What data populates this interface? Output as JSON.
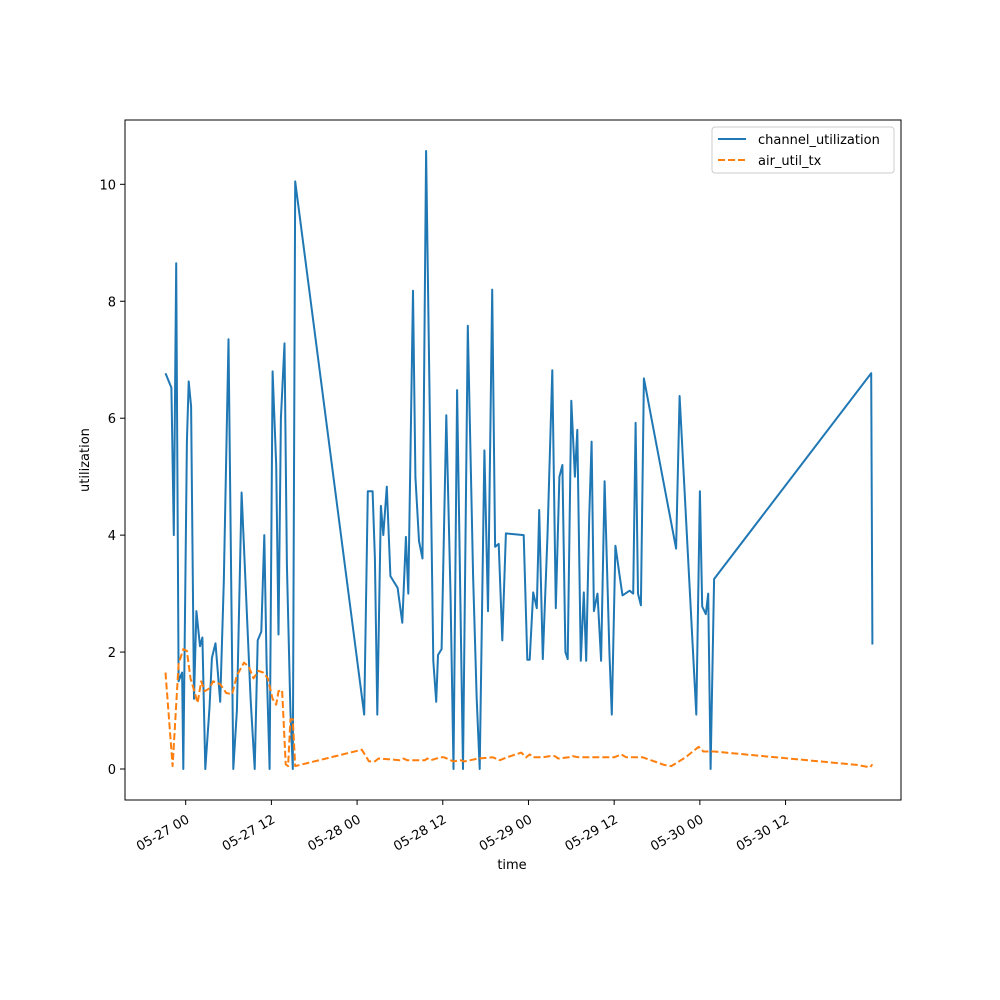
{
  "chart_data": {
    "type": "line",
    "title": "",
    "xlabel": "time",
    "ylabel": "utilization",
    "grid": false,
    "legend_position": "top-right",
    "xlim": [
      "2023-05-26 15:30",
      "2023-05-31 04:10"
    ],
    "ylim": [
      -0.53,
      11.1
    ],
    "x_tick_labels": [
      "05-27 00",
      "05-27 12",
      "05-28 00",
      "05-28 12",
      "05-29 00",
      "05-29 12",
      "05-30 00",
      "05-30 12"
    ],
    "x_ticks": [
      "2023-05-27 00:00",
      "2023-05-27 12:00",
      "2023-05-28 00:00",
      "2023-05-28 12:00",
      "2023-05-29 00:00",
      "2023-05-29 12:00",
      "2023-05-30 00:00",
      "2023-05-30 12:00"
    ],
    "y_ticks": [
      0,
      2,
      4,
      6,
      8,
      10
    ],
    "y_tick_labels": [
      "0",
      "2",
      "4",
      "6",
      "8",
      "10"
    ],
    "series": [
      {
        "name": "channel_utilization",
        "color": "#1f77b4",
        "style": "solid",
        "points": [
          [
            "2023-05-26 21:10",
            6.77
          ],
          [
            "2023-05-26 22:00",
            6.52
          ],
          [
            "2023-05-26 22:05",
            5.9
          ],
          [
            "2023-05-26 22:20",
            4.0
          ],
          [
            "2023-05-26 22:40",
            8.65
          ],
          [
            "2023-05-26 23:00",
            1.5
          ],
          [
            "2023-05-26 23:30",
            1.65
          ],
          [
            "2023-05-26 23:40",
            0.0
          ],
          [
            "2023-05-27 00:10",
            5.6
          ],
          [
            "2023-05-27 00:25",
            6.63
          ],
          [
            "2023-05-27 00:45",
            6.2
          ],
          [
            "2023-05-27 01:10",
            1.2
          ],
          [
            "2023-05-27 01:30",
            2.7
          ],
          [
            "2023-05-27 02:00",
            2.1
          ],
          [
            "2023-05-27 02:20",
            2.25
          ],
          [
            "2023-05-27 02:45",
            0.0
          ],
          [
            "2023-05-27 03:20",
            1.05
          ],
          [
            "2023-05-27 03:40",
            1.9
          ],
          [
            "2023-05-27 04:10",
            2.15
          ],
          [
            "2023-05-27 04:50",
            1.15
          ],
          [
            "2023-05-27 05:20",
            3.2
          ],
          [
            "2023-05-27 06:00",
            7.35
          ],
          [
            "2023-05-27 06:40",
            0.0
          ],
          [
            "2023-05-27 07:10",
            1.0
          ],
          [
            "2023-05-27 07:50",
            4.73
          ],
          [
            "2023-05-27 09:05",
            1.2
          ],
          [
            "2023-05-27 09:40",
            0.0
          ],
          [
            "2023-05-27 10:05",
            2.2
          ],
          [
            "2023-05-27 10:35",
            2.35
          ],
          [
            "2023-05-27 11:00",
            4.0
          ],
          [
            "2023-05-27 11:20",
            1.8
          ],
          [
            "2023-05-27 11:45",
            0.0
          ],
          [
            "2023-05-27 12:10",
            6.8
          ],
          [
            "2023-05-27 12:40",
            5.2
          ],
          [
            "2023-05-27 13:00",
            2.3
          ],
          [
            "2023-05-27 13:20",
            6.0
          ],
          [
            "2023-05-27 13:50",
            7.28
          ],
          [
            "2023-05-27 14:10",
            3.5
          ],
          [
            "2023-05-27 14:40",
            1.0
          ],
          [
            "2023-05-27 15:00",
            0.0
          ],
          [
            "2023-05-27 15:20",
            10.05
          ],
          [
            "2023-05-28 01:00",
            0.93
          ],
          [
            "2023-05-28 01:30",
            4.75
          ],
          [
            "2023-05-28 02:10",
            4.75
          ],
          [
            "2023-05-28 02:30",
            3.6
          ],
          [
            "2023-05-28 02:50",
            0.93
          ],
          [
            "2023-05-28 03:20",
            4.5
          ],
          [
            "2023-05-28 03:40",
            4.0
          ],
          [
            "2023-05-28 04:10",
            4.83
          ],
          [
            "2023-05-28 04:40",
            3.3
          ],
          [
            "2023-05-28 05:40",
            3.1
          ],
          [
            "2023-05-28 06:20",
            2.5
          ],
          [
            "2023-05-28 06:50",
            3.97
          ],
          [
            "2023-05-28 07:10",
            3.0
          ],
          [
            "2023-05-28 07:50",
            8.18
          ],
          [
            "2023-05-28 08:10",
            5.0
          ],
          [
            "2023-05-28 08:40",
            3.9
          ],
          [
            "2023-05-28 09:10",
            3.6
          ],
          [
            "2023-05-28 09:40",
            10.57
          ],
          [
            "2023-05-28 10:40",
            1.85
          ],
          [
            "2023-05-28 11:05",
            1.15
          ],
          [
            "2023-05-28 11:20",
            1.95
          ],
          [
            "2023-05-28 11:50",
            2.05
          ],
          [
            "2023-05-28 12:30",
            6.05
          ],
          [
            "2023-05-28 13:05",
            3.0
          ],
          [
            "2023-05-28 13:30",
            0.0
          ],
          [
            "2023-05-28 14:00",
            6.48
          ],
          [
            "2023-05-28 14:50",
            0.0
          ],
          [
            "2023-05-28 15:30",
            7.58
          ],
          [
            "2023-05-28 16:15",
            3.3
          ],
          [
            "2023-05-28 16:45",
            1.2
          ],
          [
            "2023-05-28 17:10",
            0.0
          ],
          [
            "2023-05-28 17:50",
            5.45
          ],
          [
            "2023-05-28 18:20",
            2.7
          ],
          [
            "2023-05-28 18:55",
            8.2
          ],
          [
            "2023-05-28 19:20",
            3.8
          ],
          [
            "2023-05-28 19:50",
            3.85
          ],
          [
            "2023-05-28 20:20",
            2.2
          ],
          [
            "2023-05-28 20:50",
            4.03
          ],
          [
            "2023-05-28 23:20",
            4.0
          ],
          [
            "2023-05-28 23:50",
            1.87
          ],
          [
            "2023-05-29 00:10",
            1.87
          ],
          [
            "2023-05-29 00:40",
            3.02
          ],
          [
            "2023-05-29 01:10",
            2.75
          ],
          [
            "2023-05-29 01:30",
            4.43
          ],
          [
            "2023-05-29 02:00",
            1.88
          ],
          [
            "2023-05-29 02:40",
            4.0
          ],
          [
            "2023-05-29 03:20",
            6.82
          ],
          [
            "2023-05-29 03:50",
            2.75
          ],
          [
            "2023-05-29 04:20",
            5.0
          ],
          [
            "2023-05-29 04:45",
            5.2
          ],
          [
            "2023-05-29 05:10",
            2.0
          ],
          [
            "2023-05-29 05:30",
            1.88
          ],
          [
            "2023-05-29 06:00",
            6.3
          ],
          [
            "2023-05-29 06:30",
            5.0
          ],
          [
            "2023-05-29 06:50",
            5.8
          ],
          [
            "2023-05-29 07:20",
            1.85
          ],
          [
            "2023-05-29 07:45",
            3.02
          ],
          [
            "2023-05-29 08:05",
            1.85
          ],
          [
            "2023-05-29 08:30",
            4.3
          ],
          [
            "2023-05-29 08:50",
            5.6
          ],
          [
            "2023-05-29 09:10",
            2.7
          ],
          [
            "2023-05-29 09:40",
            3.0
          ],
          [
            "2023-05-29 10:10",
            1.85
          ],
          [
            "2023-05-29 10:40",
            4.92
          ],
          [
            "2023-05-29 11:20",
            2.0
          ],
          [
            "2023-05-29 11:40",
            0.93
          ],
          [
            "2023-05-29 12:10",
            3.82
          ],
          [
            "2023-05-29 12:50",
            3.25
          ],
          [
            "2023-05-29 13:10",
            2.97
          ],
          [
            "2023-05-29 14:10",
            3.05
          ],
          [
            "2023-05-29 14:40",
            3.0
          ],
          [
            "2023-05-29 15:00",
            5.92
          ],
          [
            "2023-05-29 15:20",
            3.0
          ],
          [
            "2023-05-29 15:45",
            2.8
          ],
          [
            "2023-05-29 16:10",
            6.68
          ],
          [
            "2023-05-29 20:40",
            3.77
          ],
          [
            "2023-05-29 21:10",
            6.38
          ],
          [
            "2023-05-29 23:30",
            0.93
          ],
          [
            "2023-05-30 00:00",
            4.75
          ],
          [
            "2023-05-30 00:20",
            2.78
          ],
          [
            "2023-05-30 00:50",
            2.65
          ],
          [
            "2023-05-30 01:10",
            3.0
          ],
          [
            "2023-05-30 01:30",
            0.0
          ],
          [
            "2023-05-30 02:00",
            3.25
          ],
          [
            "2023-05-31 00:00",
            6.77
          ],
          [
            "2023-05-31 00:10",
            2.13
          ]
        ]
      },
      {
        "name": "air_util_tx",
        "color": "#ff7f0e",
        "style": "dashed",
        "points": [
          [
            "2023-05-26 21:10",
            1.65
          ],
          [
            "2023-05-26 22:10",
            0.05
          ],
          [
            "2023-05-26 23:00",
            1.8
          ],
          [
            "2023-05-26 23:40",
            2.05
          ],
          [
            "2023-05-27 00:10",
            2.02
          ],
          [
            "2023-05-27 00:40",
            1.55
          ],
          [
            "2023-05-27 01:10",
            1.35
          ],
          [
            "2023-05-27 01:40",
            1.13
          ],
          [
            "2023-05-27 02:10",
            1.5
          ],
          [
            "2023-05-27 02:40",
            1.33
          ],
          [
            "2023-05-27 03:20",
            1.38
          ],
          [
            "2023-05-27 03:50",
            1.5
          ],
          [
            "2023-05-27 04:50",
            1.45
          ],
          [
            "2023-05-27 05:40",
            1.3
          ],
          [
            "2023-05-27 06:30",
            1.28
          ],
          [
            "2023-05-27 07:10",
            1.6
          ],
          [
            "2023-05-27 08:10",
            1.82
          ],
          [
            "2023-05-27 08:50",
            1.75
          ],
          [
            "2023-05-27 09:30",
            1.55
          ],
          [
            "2023-05-27 10:10",
            1.68
          ],
          [
            "2023-05-27 10:50",
            1.65
          ],
          [
            "2023-05-27 11:30",
            1.55
          ],
          [
            "2023-05-27 12:10",
            1.2
          ],
          [
            "2023-05-27 12:40",
            1.1
          ],
          [
            "2023-05-27 13:00",
            1.33
          ],
          [
            "2023-05-27 13:30",
            1.35
          ],
          [
            "2023-05-27 14:00",
            0.08
          ],
          [
            "2023-05-27 14:20",
            0.05
          ],
          [
            "2023-05-27 14:40",
            0.85
          ],
          [
            "2023-05-27 15:00",
            0.85
          ],
          [
            "2023-05-27 15:20",
            0.05
          ],
          [
            "2023-05-28 00:40",
            0.33
          ],
          [
            "2023-05-28 01:40",
            0.13
          ],
          [
            "2023-05-28 02:30",
            0.13
          ],
          [
            "2023-05-28 03:00",
            0.18
          ],
          [
            "2023-05-28 06:00",
            0.15
          ],
          [
            "2023-05-28 06:30",
            0.18
          ],
          [
            "2023-05-28 07:00",
            0.15
          ],
          [
            "2023-05-28 09:30",
            0.15
          ],
          [
            "2023-05-28 09:50",
            0.18
          ],
          [
            "2023-05-28 10:20",
            0.15
          ],
          [
            "2023-05-28 11:40",
            0.2
          ],
          [
            "2023-05-28 12:10",
            0.2
          ],
          [
            "2023-05-28 13:30",
            0.13
          ],
          [
            "2023-05-28 14:30",
            0.15
          ],
          [
            "2023-05-28 15:00",
            0.13
          ],
          [
            "2023-05-28 17:00",
            0.18
          ],
          [
            "2023-05-28 19:00",
            0.2
          ],
          [
            "2023-05-28 20:00",
            0.15
          ],
          [
            "2023-05-28 21:00",
            0.2
          ],
          [
            "2023-05-28 23:00",
            0.28
          ],
          [
            "2023-05-28 23:40",
            0.2
          ],
          [
            "2023-05-29 00:10",
            0.25
          ],
          [
            "2023-05-29 00:40",
            0.2
          ],
          [
            "2023-05-29 02:00",
            0.2
          ],
          [
            "2023-05-29 03:00",
            0.22
          ],
          [
            "2023-05-29 03:40",
            0.22
          ],
          [
            "2023-05-29 04:10",
            0.18
          ],
          [
            "2023-05-29 05:40",
            0.2
          ],
          [
            "2023-05-29 06:10",
            0.22
          ],
          [
            "2023-05-29 07:00",
            0.2
          ],
          [
            "2023-05-29 08:00",
            0.2
          ],
          [
            "2023-05-29 09:00",
            0.2
          ],
          [
            "2023-05-29 12:00",
            0.2
          ],
          [
            "2023-05-29 13:00",
            0.25
          ],
          [
            "2023-05-29 13:40",
            0.2
          ],
          [
            "2023-05-29 16:00",
            0.2
          ],
          [
            "2023-05-29 19:00",
            0.07
          ],
          [
            "2023-05-29 20:00",
            0.05
          ],
          [
            "2023-05-29 22:00",
            0.2
          ],
          [
            "2023-05-29 23:50",
            0.38
          ],
          [
            "2023-05-30 00:30",
            0.3
          ],
          [
            "2023-05-30 02:00",
            0.3
          ],
          [
            "2023-05-30 22:00",
            0.07
          ],
          [
            "2023-05-30 23:50",
            0.03
          ],
          [
            "2023-05-31 00:10",
            0.08
          ]
        ]
      }
    ]
  }
}
